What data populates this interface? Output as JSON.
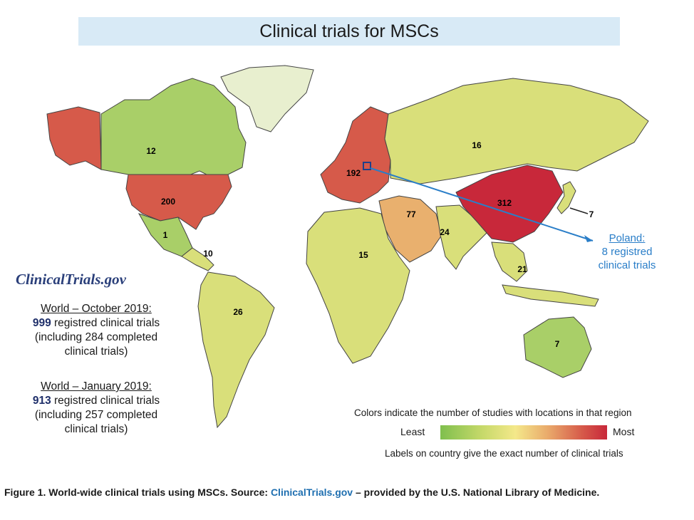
{
  "title": "Clinical trials for MSCs",
  "brand": "ClinicalTrials.gov",
  "world_oct_2019": {
    "heading": "World – October 2019:",
    "count": "999",
    "line1_rest": " registred clinical trials",
    "line2": "(including 284 completed",
    "line3": "clinical trials)"
  },
  "world_jan_2019": {
    "heading": "World – January 2019:",
    "count": "913",
    "line1_rest": " registred clinical trials",
    "line2": "(including 257 completed",
    "line3": "clinical trials)"
  },
  "poland_callout": {
    "name": "Poland:",
    "line2": "8 registred",
    "line3": "clinical trials"
  },
  "legend": {
    "title": "Colors indicate the number of studies with locations in that region",
    "least": "Least",
    "most": "Most",
    "note": "Labels on country give the exact number of clinical trials"
  },
  "caption": {
    "prefix": "Figure 1. World-wide clinical trials using MSCs. Source: ",
    "link": "ClinicalTrials.gov",
    "suffix": " – provided by the U.S. National Library of Medicine."
  },
  "colors": {
    "most": "#c8283a",
    "high": "#d65a4a",
    "mid": "#e9b06e",
    "low": "#d9df7a",
    "least": "#a9cf68",
    "none": "#e8efcf",
    "callout": "#2a7ec8"
  },
  "regions": [
    {
      "name": "Alaska",
      "label": "",
      "level": "high"
    },
    {
      "name": "Canada",
      "label": "12",
      "level": "least"
    },
    {
      "name": "Greenland",
      "label": "",
      "level": "none"
    },
    {
      "name": "United States",
      "label": "200",
      "level": "high"
    },
    {
      "name": "Mexico",
      "label": "1",
      "level": "least"
    },
    {
      "name": "Central America",
      "label": "10",
      "level": "low"
    },
    {
      "name": "South America",
      "label": "26",
      "level": "low"
    },
    {
      "name": "Europe",
      "label": "192",
      "level": "high"
    },
    {
      "name": "Russia",
      "label": "16",
      "level": "low"
    },
    {
      "name": "Middle East",
      "label": "77",
      "level": "mid"
    },
    {
      "name": "Africa",
      "label": "15",
      "level": "low"
    },
    {
      "name": "South Asia",
      "label": "24",
      "level": "low"
    },
    {
      "name": "China",
      "label": "312",
      "level": "most"
    },
    {
      "name": "Japan",
      "label": "7",
      "level": "low"
    },
    {
      "name": "Southeast Asia",
      "label": "21",
      "level": "low"
    },
    {
      "name": "Australia",
      "label": "7",
      "level": "least"
    }
  ]
}
